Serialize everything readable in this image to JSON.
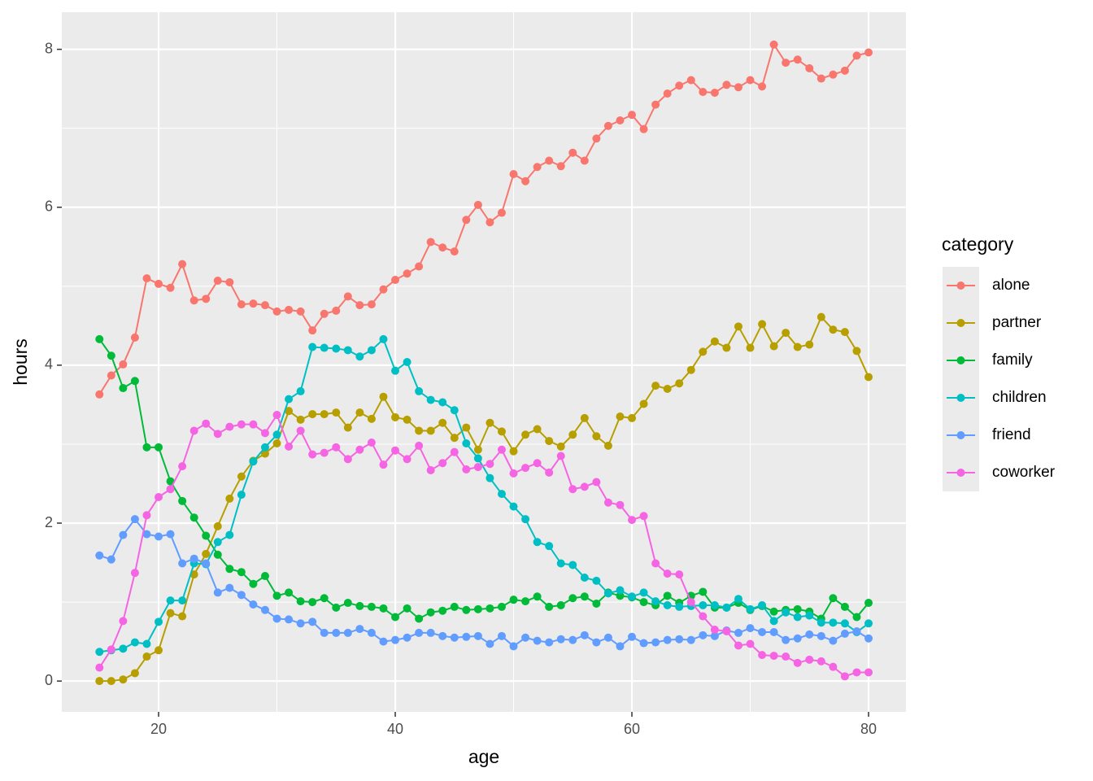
{
  "chart_data": {
    "type": "line",
    "x_label": "age",
    "y_label": "hours",
    "legend_title": "category",
    "legend_position": "right",
    "grid": true,
    "xlim": [
      11.82,
      83.16
    ],
    "ylim": [
      -0.39,
      8.47
    ],
    "xticks": [
      20,
      40,
      60,
      80
    ],
    "yticks": [
      0,
      2,
      4,
      6,
      8
    ],
    "x": [
      15,
      16,
      17,
      18,
      19,
      20,
      21,
      22,
      23,
      24,
      25,
      26,
      27,
      28,
      29,
      30,
      31,
      32,
      33,
      34,
      35,
      36,
      37,
      38,
      39,
      40,
      41,
      42,
      43,
      44,
      45,
      46,
      47,
      48,
      49,
      50,
      51,
      52,
      53,
      54,
      55,
      56,
      57,
      58,
      59,
      60,
      61,
      62,
      63,
      64,
      65,
      66,
      67,
      68,
      69,
      70,
      71,
      72,
      73,
      74,
      75,
      76,
      77,
      78,
      79,
      80
    ],
    "series": [
      {
        "name": "alone",
        "color": "#F8766D",
        "values": [
          3.63,
          3.87,
          4.01,
          4.35,
          5.1,
          5.03,
          4.98,
          5.28,
          4.82,
          4.84,
          5.07,
          5.05,
          4.77,
          4.78,
          4.76,
          4.68,
          4.7,
          4.68,
          4.44,
          4.65,
          4.69,
          4.87,
          4.76,
          4.77,
          4.96,
          5.08,
          5.16,
          5.25,
          5.56,
          5.49,
          5.44,
          5.84,
          6.03,
          5.81,
          5.93,
          6.42,
          6.33,
          6.51,
          6.59,
          6.52,
          6.69,
          6.59,
          6.87,
          7.03,
          7.1,
          7.17,
          6.99,
          7.3,
          7.44,
          7.54,
          7.61,
          7.46,
          7.45,
          7.55,
          7.52,
          7.61,
          7.53,
          8.06,
          7.83,
          7.87,
          7.76,
          7.63,
          7.68,
          7.73,
          7.92,
          7.96
        ]
      },
      {
        "name": "partner",
        "color": "#B79F00",
        "values": [
          0.0,
          0.0,
          0.02,
          0.1,
          0.31,
          0.39,
          0.86,
          0.82,
          1.35,
          1.61,
          1.96,
          2.31,
          2.59,
          2.79,
          2.88,
          3.01,
          3.42,
          3.31,
          3.38,
          3.38,
          3.4,
          3.21,
          3.4,
          3.32,
          3.6,
          3.34,
          3.31,
          3.17,
          3.17,
          3.27,
          3.08,
          3.21,
          2.93,
          3.27,
          3.16,
          2.91,
          3.12,
          3.19,
          3.04,
          2.97,
          3.12,
          3.33,
          3.1,
          2.98,
          3.35,
          3.33,
          3.51,
          3.74,
          3.7,
          3.77,
          3.94,
          4.17,
          4.3,
          4.22,
          4.49,
          4.22,
          4.52,
          4.24,
          4.41,
          4.23,
          4.26,
          4.61,
          4.45,
          4.42,
          4.18,
          3.85
        ]
      },
      {
        "name": "family",
        "color": "#00BA38",
        "values": [
          4.33,
          4.12,
          3.71,
          3.8,
          2.96,
          2.96,
          2.53,
          2.28,
          2.07,
          1.84,
          1.6,
          1.42,
          1.38,
          1.23,
          1.33,
          1.08,
          1.12,
          1.01,
          1.0,
          1.05,
          0.93,
          0.99,
          0.95,
          0.94,
          0.92,
          0.81,
          0.92,
          0.79,
          0.87,
          0.89,
          0.94,
          0.9,
          0.91,
          0.92,
          0.94,
          1.03,
          1.01,
          1.07,
          0.94,
          0.96,
          1.05,
          1.07,
          0.98,
          1.12,
          1.08,
          1.06,
          1.0,
          0.96,
          1.08,
          0.99,
          1.08,
          1.13,
          0.93,
          0.93,
          0.99,
          0.9,
          0.95,
          0.88,
          0.9,
          0.91,
          0.88,
          0.79,
          1.05,
          0.94,
          0.81,
          0.99
        ]
      },
      {
        "name": "children",
        "color": "#00BFC4",
        "values": [
          0.37,
          0.39,
          0.41,
          0.49,
          0.47,
          0.75,
          1.02,
          1.02,
          1.49,
          1.48,
          1.76,
          1.85,
          2.36,
          2.78,
          2.96,
          3.12,
          3.57,
          3.67,
          4.23,
          4.22,
          4.21,
          4.19,
          4.11,
          4.19,
          4.33,
          3.93,
          4.04,
          3.67,
          3.56,
          3.53,
          3.43,
          3.01,
          2.82,
          2.57,
          2.37,
          2.21,
          2.05,
          1.76,
          1.71,
          1.49,
          1.47,
          1.31,
          1.27,
          1.11,
          1.15,
          1.07,
          1.12,
          1.01,
          0.96,
          0.94,
          0.95,
          0.96,
          0.96,
          0.93,
          1.04,
          0.91,
          0.96,
          0.76,
          0.87,
          0.81,
          0.83,
          0.74,
          0.74,
          0.73,
          0.62,
          0.73
        ]
      },
      {
        "name": "friend",
        "color": "#619CFF",
        "values": [
          1.59,
          1.54,
          1.85,
          2.05,
          1.86,
          1.83,
          1.86,
          1.49,
          1.55,
          1.49,
          1.12,
          1.18,
          1.09,
          0.97,
          0.9,
          0.79,
          0.78,
          0.73,
          0.75,
          0.61,
          0.61,
          0.61,
          0.66,
          0.61,
          0.5,
          0.52,
          0.55,
          0.61,
          0.61,
          0.57,
          0.55,
          0.56,
          0.57,
          0.47,
          0.57,
          0.44,
          0.55,
          0.51,
          0.49,
          0.53,
          0.52,
          0.58,
          0.49,
          0.55,
          0.44,
          0.56,
          0.48,
          0.49,
          0.52,
          0.53,
          0.52,
          0.58,
          0.57,
          0.64,
          0.61,
          0.67,
          0.62,
          0.62,
          0.52,
          0.54,
          0.59,
          0.57,
          0.51,
          0.6,
          0.63,
          0.54
        ]
      },
      {
        "name": "coworker",
        "color": "#F564E3",
        "values": [
          0.17,
          0.4,
          0.76,
          1.37,
          2.1,
          2.33,
          2.43,
          2.72,
          3.17,
          3.26,
          3.13,
          3.22,
          3.25,
          3.25,
          3.14,
          3.37,
          2.97,
          3.17,
          2.87,
          2.89,
          2.96,
          2.81,
          2.93,
          3.02,
          2.74,
          2.92,
          2.81,
          2.98,
          2.67,
          2.76,
          2.9,
          2.68,
          2.71,
          2.75,
          2.93,
          2.63,
          2.7,
          2.76,
          2.64,
          2.85,
          2.43,
          2.46,
          2.52,
          2.26,
          2.23,
          2.04,
          2.09,
          1.49,
          1.36,
          1.35,
          1.0,
          0.82,
          0.65,
          0.63,
          0.45,
          0.47,
          0.33,
          0.32,
          0.31,
          0.23,
          0.27,
          0.25,
          0.18,
          0.06,
          0.11,
          0.11
        ]
      }
    ]
  }
}
